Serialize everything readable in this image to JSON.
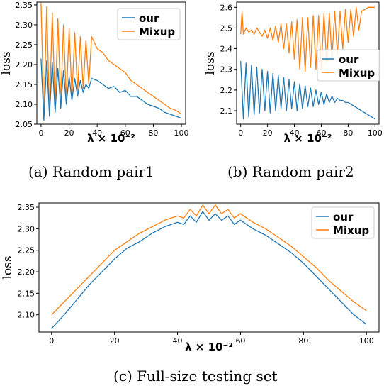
{
  "colors": {
    "our": "#1f77b4",
    "mixup": "#ff7f0e"
  },
  "captions": {
    "a": "(a)  Random pair1",
    "b": "(b)  Random pair2",
    "c": "(c)  Full-size testing set"
  },
  "chart_data": [
    {
      "type": "line",
      "ylabel": "loss",
      "xlabel": "λ × 10⁻²",
      "xlim": [
        -3,
        103
      ],
      "ylim": [
        2.05,
        2.357
      ],
      "xticks": [
        0,
        20,
        40,
        60,
        80,
        100
      ],
      "yticks": [
        2.05,
        2.1,
        2.15,
        2.2,
        2.25,
        2.3,
        2.35
      ],
      "legend": "top-right",
      "grid": false,
      "series": [
        {
          "name": "our",
          "color": "#1f77b4",
          "x": [
            0,
            2,
            4,
            6,
            8,
            10,
            12,
            14,
            16,
            18,
            20,
            22,
            24,
            26,
            28,
            30,
            32,
            34,
            36,
            40,
            44,
            48,
            52,
            56,
            60,
            64,
            68,
            72,
            76,
            80,
            84,
            88,
            92,
            96,
            100
          ],
          "y": [
            2.215,
            2.06,
            2.21,
            2.07,
            2.205,
            2.08,
            2.19,
            2.09,
            2.185,
            2.1,
            2.17,
            2.11,
            2.165,
            2.12,
            2.16,
            2.13,
            2.15,
            2.14,
            2.165,
            2.16,
            2.15,
            2.14,
            2.145,
            2.13,
            2.135,
            2.12,
            2.12,
            2.11,
            2.1,
            2.095,
            2.09,
            2.08,
            2.075,
            2.07,
            2.065
          ]
        },
        {
          "name": "Mixup",
          "color": "#ff7f0e",
          "x": [
            0,
            2,
            4,
            6,
            8,
            10,
            12,
            14,
            16,
            18,
            20,
            22,
            24,
            26,
            28,
            30,
            32,
            34,
            36,
            40,
            44,
            48,
            52,
            56,
            60,
            64,
            68,
            72,
            76,
            80,
            84,
            88,
            92,
            96,
            100
          ],
          "y": [
            2.355,
            2.07,
            2.345,
            2.08,
            2.33,
            2.09,
            2.315,
            2.1,
            2.3,
            2.11,
            2.29,
            2.12,
            2.28,
            2.13,
            2.27,
            2.14,
            2.26,
            2.15,
            2.27,
            2.24,
            2.23,
            2.21,
            2.2,
            2.19,
            2.18,
            2.16,
            2.15,
            2.14,
            2.13,
            2.12,
            2.11,
            2.1,
            2.09,
            2.085,
            2.075
          ]
        }
      ]
    },
    {
      "type": "line",
      "ylabel": "loss",
      "xlabel": "λ × 10⁻²",
      "xlim": [
        -3,
        103
      ],
      "ylim": [
        2.035,
        2.625
      ],
      "xticks": [
        0,
        20,
        40,
        60,
        80,
        100
      ],
      "yticks": [
        2.1,
        2.2,
        2.3,
        2.4,
        2.5,
        2.6
      ],
      "legend": "middle-right",
      "grid": false,
      "series": [
        {
          "name": "our",
          "color": "#1f77b4",
          "x": [
            0,
            2,
            4,
            6,
            8,
            10,
            12,
            14,
            16,
            18,
            20,
            22,
            24,
            26,
            28,
            30,
            32,
            34,
            36,
            38,
            40,
            42,
            44,
            46,
            48,
            50,
            52,
            54,
            56,
            58,
            60,
            62,
            64,
            66,
            68,
            70,
            72,
            74,
            76,
            78,
            80,
            85,
            90,
            95,
            100
          ],
          "y": [
            2.34,
            2.06,
            2.33,
            2.07,
            2.32,
            2.08,
            2.31,
            2.09,
            2.3,
            2.1,
            2.29,
            2.09,
            2.28,
            2.1,
            2.27,
            2.11,
            2.26,
            2.1,
            2.25,
            2.11,
            2.24,
            2.1,
            2.23,
            2.11,
            2.22,
            2.12,
            2.21,
            2.12,
            2.2,
            2.13,
            2.19,
            2.13,
            2.18,
            2.14,
            2.17,
            2.14,
            2.16,
            2.15,
            2.15,
            2.14,
            2.14,
            2.12,
            2.1,
            2.08,
            2.06
          ]
        },
        {
          "name": "Mixup",
          "color": "#ff7f0e",
          "x": [
            0,
            1,
            2,
            4,
            6,
            8,
            10,
            12,
            14,
            16,
            18,
            20,
            22,
            24,
            26,
            28,
            30,
            32,
            34,
            36,
            38,
            40,
            42,
            44,
            46,
            48,
            50,
            52,
            54,
            56,
            58,
            60,
            62,
            64,
            66,
            68,
            70,
            72,
            74,
            76,
            78,
            80,
            82,
            84,
            86,
            88,
            90,
            95,
            100
          ],
          "y": [
            2.47,
            2.58,
            2.47,
            2.5,
            2.48,
            2.49,
            2.47,
            2.5,
            2.48,
            2.46,
            2.49,
            2.45,
            2.5,
            2.44,
            2.51,
            2.43,
            2.52,
            2.4,
            2.52,
            2.38,
            2.53,
            2.35,
            2.54,
            2.3,
            2.55,
            2.29,
            2.55,
            2.31,
            2.56,
            2.3,
            2.56,
            2.29,
            2.57,
            2.33,
            2.57,
            2.35,
            2.58,
            2.37,
            2.58,
            2.4,
            2.59,
            2.43,
            2.59,
            2.46,
            2.6,
            2.49,
            2.58,
            2.6,
            2.6
          ]
        }
      ]
    },
    {
      "type": "line",
      "ylabel": "loss",
      "xlabel": "λ × 10⁻²",
      "xlim": [
        -4,
        104
      ],
      "ylim": [
        2.06,
        2.36
      ],
      "xticks": [
        0,
        20,
        40,
        60,
        80,
        100
      ],
      "yticks": [
        2.1,
        2.15,
        2.2,
        2.25,
        2.3,
        2.35
      ],
      "legend": "top-right",
      "grid": false,
      "series": [
        {
          "name": "our",
          "color": "#1f77b4",
          "x": [
            0,
            4,
            8,
            12,
            16,
            20,
            24,
            28,
            32,
            36,
            40,
            42,
            44,
            46,
            48,
            50,
            52,
            54,
            56,
            58,
            60,
            64,
            68,
            72,
            76,
            80,
            84,
            88,
            92,
            96,
            100
          ],
          "y": [
            2.068,
            2.1,
            2.135,
            2.17,
            2.2,
            2.23,
            2.255,
            2.27,
            2.29,
            2.305,
            2.315,
            2.31,
            2.33,
            2.315,
            2.34,
            2.32,
            2.335,
            2.32,
            2.33,
            2.31,
            2.32,
            2.3,
            2.285,
            2.265,
            2.245,
            2.22,
            2.19,
            2.16,
            2.13,
            2.1,
            2.078
          ]
        },
        {
          "name": "Mixup",
          "color": "#ff7f0e",
          "x": [
            0,
            4,
            8,
            12,
            16,
            20,
            24,
            28,
            32,
            36,
            40,
            42,
            44,
            46,
            48,
            50,
            52,
            54,
            56,
            58,
            60,
            64,
            68,
            72,
            76,
            80,
            84,
            88,
            92,
            96,
            100
          ],
          "y": [
            2.1,
            2.13,
            2.16,
            2.19,
            2.22,
            2.25,
            2.27,
            2.29,
            2.305,
            2.32,
            2.33,
            2.325,
            2.345,
            2.33,
            2.355,
            2.335,
            2.355,
            2.335,
            2.345,
            2.325,
            2.335,
            2.315,
            2.3,
            2.28,
            2.26,
            2.235,
            2.21,
            2.18,
            2.155,
            2.13,
            2.11
          ]
        }
      ]
    }
  ]
}
